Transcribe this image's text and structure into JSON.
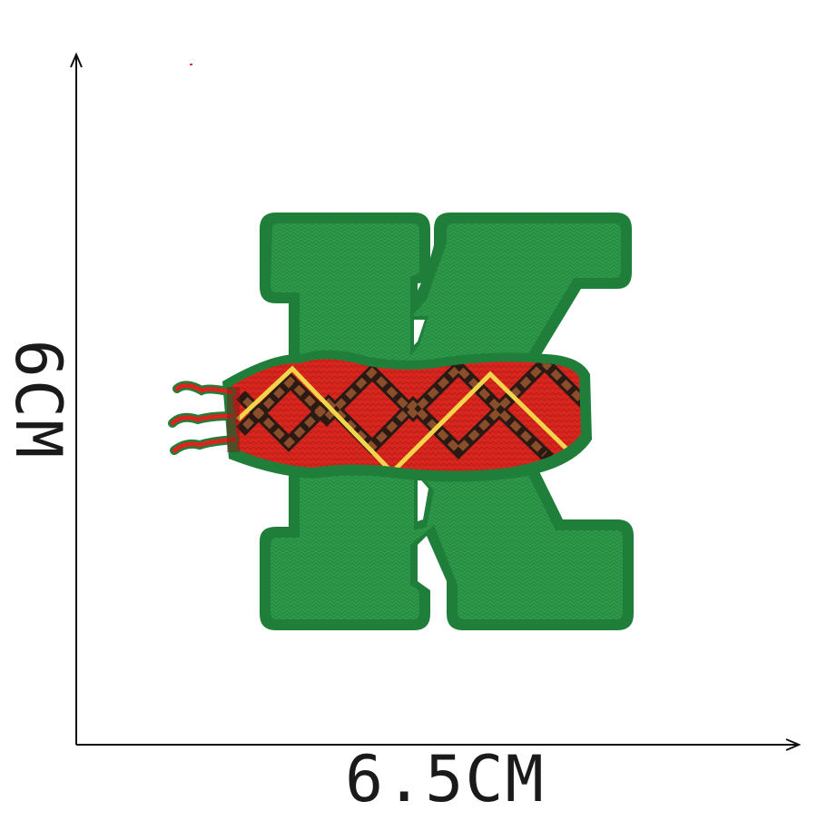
{
  "dimensions": {
    "width_label": "6.5CM",
    "height_label": "6CM"
  },
  "patch": {
    "letter": "K",
    "icon": "embroidered-letter-k-patch-icon",
    "colors": {
      "border": "#1f7f3a",
      "fill": "#2e9a4a",
      "scarf": "#d8261e",
      "plaid_dark": "#2b1a14",
      "plaid_brown": "#8a4e2b",
      "zigzag": "#f2d54a"
    }
  },
  "colors": {
    "axis": "#111111",
    "background": "#ffffff"
  }
}
